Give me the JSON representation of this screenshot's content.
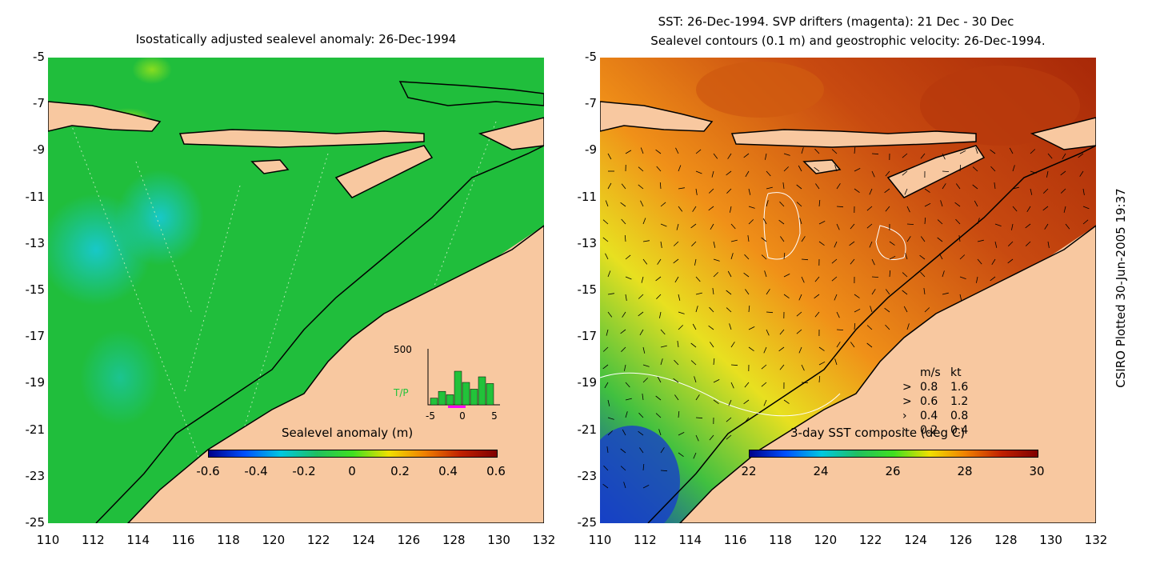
{
  "left_panel": {
    "title": "Isostatically adjusted sealevel anomaly: 26-Dec-1994",
    "colorbar": {
      "label": "Sealevel anomaly (m)",
      "ticks": [
        "-0.6",
        "-0.4",
        "-0.2",
        "0",
        "0.2",
        "0.4",
        "0.6"
      ],
      "range": [
        -0.6,
        0.6
      ]
    },
    "inset": {
      "y_top_label": "500",
      "series_label": "T/P",
      "x_ticks": [
        "-5",
        "0",
        "5"
      ],
      "bar_values": [
        60,
        120,
        90,
        300,
        200,
        140,
        250,
        190
      ]
    }
  },
  "right_panel": {
    "title_line1": "SST: 26-Dec-1994. SVP drifters (magenta): 21 Dec - 30 Dec",
    "title_line2": "Sealevel contours (0.1 m) and geostrophic velocity: 26-Dec-1994.",
    "colorbar": {
      "label": "3-day SST composite (deg C)",
      "ticks": [
        "22",
        "24",
        "26",
        "28",
        "30"
      ],
      "range": [
        22,
        30
      ]
    },
    "velocity_legend": {
      "header_ms": "m/s",
      "header_kt": "kt",
      "rows": [
        {
          "ms": "0.8",
          "kt": "1.6"
        },
        {
          "ms": "0.6",
          "kt": "1.2"
        },
        {
          "ms": "0.4",
          "kt": "0.8"
        },
        {
          "ms": "0.2",
          "kt": "0.4"
        }
      ]
    }
  },
  "axes": {
    "lat_ticks": [
      "-5",
      "-7",
      "-9",
      "-11",
      "-13",
      "-15",
      "-17",
      "-19",
      "-21",
      "-23",
      "-25"
    ],
    "lon_ticks": [
      "110",
      "112",
      "114",
      "116",
      "118",
      "120",
      "122",
      "124",
      "126",
      "128",
      "130",
      "132"
    ],
    "lat_range": [
      -25,
      -5
    ],
    "lon_range": [
      110,
      132
    ]
  },
  "credit": "CSIRO Plotted 30-Jun-2005 19:37",
  "colors": {
    "land": "#f8c8a0",
    "ocean_green": "#22c23a",
    "sst_warm": "#c84a10",
    "drifter": "#ff00ff"
  }
}
